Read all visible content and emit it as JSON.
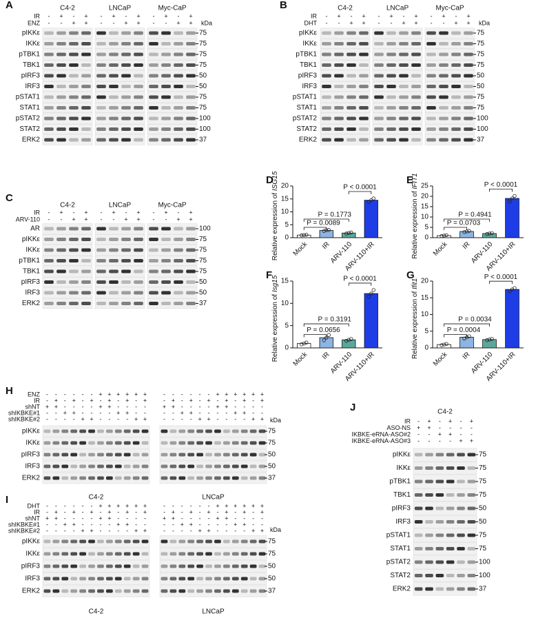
{
  "panels": [
    {
      "letter": "A",
      "groups": [
        "C4-2",
        "LNCaP",
        "Myc-CaP"
      ],
      "conditions": [
        {
          "name": "IR",
          "signs": [
            "-",
            "+",
            "-",
            "+"
          ]
        },
        {
          "name": "ENZ",
          "signs": [
            "-",
            "-",
            "+",
            "+"
          ]
        }
      ],
      "kda_label": "kDa",
      "rows": [
        {
          "name": "pIKKε",
          "marker": 75
        },
        {
          "name": "IKKε",
          "marker": 75
        },
        {
          "name": "pTBK1",
          "marker": 75
        },
        {
          "name": "TBK1",
          "marker": 75
        },
        {
          "name": "pIRF3",
          "marker": 50
        },
        {
          "name": "IRF3",
          "marker": 50
        },
        {
          "name": "pSTAT1",
          "marker": 75
        },
        {
          "name": "STAT1",
          "marker": 75
        },
        {
          "name": "pSTAT2",
          "marker": 100
        },
        {
          "name": "STAT2",
          "marker": 100
        },
        {
          "name": "ERK2",
          "marker": 37
        }
      ]
    },
    {
      "letter": "B",
      "groups": [
        "C4-2",
        "LNCaP",
        "Myc-CaP"
      ],
      "conditions": [
        {
          "name": "IR",
          "signs": [
            "-",
            "+",
            "-",
            "+"
          ]
        },
        {
          "name": "DHT",
          "signs": [
            "-",
            "-",
            "+",
            "+"
          ]
        }
      ],
      "kda_label": "kDa",
      "rows": [
        {
          "name": "pIKKε",
          "marker": 75
        },
        {
          "name": "IKKε",
          "marker": 75
        },
        {
          "name": "pTBK1",
          "marker": 75
        },
        {
          "name": "TBK1",
          "marker": 75
        },
        {
          "name": "pIRF3",
          "marker": 50
        },
        {
          "name": "IRF3",
          "marker": 50
        },
        {
          "name": "pSTAT1",
          "marker": 75
        },
        {
          "name": "STAT1",
          "marker": 75
        },
        {
          "name": "pSTAT2",
          "marker": 100
        },
        {
          "name": "STAT2",
          "marker": 100
        },
        {
          "name": "ERK2",
          "marker": 37
        }
      ]
    },
    {
      "letter": "C",
      "groups": [
        "C4-2",
        "LNCaP",
        "Myc-CaP"
      ],
      "conditions": [
        {
          "name": "IR",
          "signs": [
            "-",
            "+",
            "-",
            "+"
          ]
        },
        {
          "name": "ARV-110",
          "signs": [
            "-",
            "-",
            "+",
            "+"
          ]
        }
      ],
      "rows": [
        {
          "name": "AR",
          "marker": 100
        },
        {
          "name": "pIKKε",
          "marker": 75
        },
        {
          "name": "IKKε",
          "marker": 75
        },
        {
          "name": "pTBK1",
          "marker": 75
        },
        {
          "name": "TBK1",
          "marker": 75
        },
        {
          "name": "pIRF3",
          "marker": 50
        },
        {
          "name": "IRF3",
          "marker": 50
        },
        {
          "name": "ERK2",
          "marker": 37
        }
      ]
    },
    {
      "letter": "H",
      "groups": [
        "C4-2",
        "LNCaP"
      ],
      "kda_label": "kDa",
      "conditions": [
        {
          "name": "ENZ",
          "signs": [
            "-",
            "-",
            "-",
            "-",
            "-",
            "-",
            "+",
            "+",
            "+",
            "+",
            "+",
            "+"
          ]
        },
        {
          "name": "IR",
          "signs": [
            "-",
            "+",
            "-",
            "+",
            "-",
            "+",
            "-",
            "+",
            "-",
            "+",
            "-",
            "+"
          ]
        },
        {
          "name": "shNT",
          "signs": [
            "+",
            "+",
            "-",
            "-",
            "-",
            "-",
            "+",
            "+",
            "-",
            "-",
            "-",
            "-"
          ]
        },
        {
          "name": "shIKBKE#1",
          "signs": [
            "-",
            "-",
            "+",
            "+",
            "-",
            "-",
            "-",
            "-",
            "+",
            "+",
            "-",
            "-"
          ]
        },
        {
          "name": "shIKBKE#2",
          "signs": [
            "-",
            "-",
            "-",
            "-",
            "+",
            "+",
            "-",
            "-",
            "-",
            "-",
            "+",
            "+"
          ]
        }
      ],
      "rows": [
        {
          "name": "pIKKε",
          "marker": 75
        },
        {
          "name": "IKKε",
          "marker": 75
        },
        {
          "name": "pIRF3",
          "marker": 50
        },
        {
          "name": "IRF3",
          "marker": 50
        },
        {
          "name": "ERK2",
          "marker": 37
        }
      ]
    },
    {
      "letter": "I",
      "groups": [
        "C4-2",
        "LNCaP"
      ],
      "kda_label": "kDa",
      "conditions": [
        {
          "name": "DHT",
          "signs": [
            "-",
            "-",
            "-",
            "-",
            "-",
            "-",
            "+",
            "+",
            "+",
            "+",
            "+",
            "+"
          ]
        },
        {
          "name": "IR",
          "signs": [
            "-",
            "+",
            "-",
            "+",
            "-",
            "+",
            "-",
            "+",
            "-",
            "+",
            "-",
            "+"
          ]
        },
        {
          "name": "shNT",
          "signs": [
            "+",
            "+",
            "-",
            "-",
            "-",
            "-",
            "+",
            "+",
            "-",
            "-",
            "-",
            "-"
          ]
        },
        {
          "name": "shIKBKE#1",
          "signs": [
            "-",
            "-",
            "+",
            "+",
            "-",
            "-",
            "-",
            "-",
            "+",
            "+",
            "-",
            "-"
          ]
        },
        {
          "name": "shIKBKE#2",
          "signs": [
            "-",
            "-",
            "-",
            "-",
            "+",
            "+",
            "-",
            "-",
            "-",
            "-",
            "+",
            "+"
          ]
        }
      ],
      "rows": [
        {
          "name": "pIKKε",
          "marker": 75
        },
        {
          "name": "IKKε",
          "marker": 75
        },
        {
          "name": "pIRF3",
          "marker": 50
        },
        {
          "name": "IRF3",
          "marker": 50
        },
        {
          "name": "ERK2",
          "marker": 37
        }
      ]
    },
    {
      "letter": "J",
      "groups": [
        "C4-2"
      ],
      "conditions": [
        {
          "name": "IR",
          "signs": [
            "-",
            "+",
            "-",
            "+",
            "-",
            "+"
          ]
        },
        {
          "name": "ASO-NS",
          "signs": [
            "+",
            "+",
            "-",
            "-",
            "-",
            "-"
          ]
        },
        {
          "name": "IKBKE-eRNA-ASO#2",
          "signs": [
            "-",
            "-",
            "+",
            "+",
            "-",
            "-"
          ]
        },
        {
          "name": "IKBKE-eRNA-ASO#3",
          "signs": [
            "-",
            "-",
            "-",
            "-",
            "+",
            "+"
          ]
        }
      ],
      "rows": [
        {
          "name": "pIKKε",
          "marker": 75
        },
        {
          "name": "IKKε",
          "marker": 75
        },
        {
          "name": "pTBK1",
          "marker": 75
        },
        {
          "name": "TBK1",
          "marker": 75
        },
        {
          "name": "pIRF3",
          "marker": 50
        },
        {
          "name": "IRF3",
          "marker": 50
        },
        {
          "name": "pSTAT1",
          "marker": 75
        },
        {
          "name": "STAT1",
          "marker": 75
        },
        {
          "name": "pSTAT2",
          "marker": 100
        },
        {
          "name": "STAT2",
          "marker": 100
        },
        {
          "name": "ERK2",
          "marker": 37
        }
      ]
    }
  ],
  "charts": [
    {
      "letter": "D",
      "type": "bar",
      "ylabel": "Relative expression of ",
      "gene": "ISG15",
      "categories": [
        "Mock",
        "IR",
        "ARV-110",
        "ARV-110+IR"
      ],
      "colors": [
        "#ffffff",
        "#8db4e2",
        "#5aa89c",
        "#1f3de6"
      ],
      "values": [
        1.0,
        2.8,
        1.8,
        14.5
      ],
      "points": [
        [
          0.9,
          1.0,
          1.1
        ],
        [
          2.6,
          2.9,
          3.0
        ],
        [
          1.6,
          1.8,
          2.0
        ],
        [
          13.8,
          14.5,
          15.2
        ]
      ],
      "ylim": [
        0,
        20
      ],
      "yticks": [
        0,
        5,
        10,
        15,
        20
      ],
      "comparisons": [
        "P = 0.0089",
        "P = 0.1773",
        "P < 0.0001"
      ]
    },
    {
      "letter": "E",
      "type": "bar",
      "ylabel": "Relative expression of ",
      "gene": "IFIT1",
      "categories": [
        "Mock",
        "IR",
        "ARV-110",
        "ARV-110+IR"
      ],
      "colors": [
        "#ffffff",
        "#8db4e2",
        "#5aa89c",
        "#1f3de6"
      ],
      "values": [
        1.0,
        3.0,
        2.0,
        19.0
      ],
      "points": [
        [
          0.8,
          1.0,
          1.2
        ],
        [
          2.7,
          3.0,
          3.3
        ],
        [
          1.8,
          2.0,
          2.2
        ],
        [
          17.5,
          19.0,
          20.2
        ]
      ],
      "ylim": [
        0,
        25
      ],
      "yticks": [
        0,
        5,
        10,
        15,
        20,
        25
      ],
      "comparisons": [
        "P = 0.0703",
        "P = 0.4941",
        "P < 0.0001"
      ]
    },
    {
      "letter": "F",
      "type": "bar",
      "ylabel": "Relative expression of ",
      "gene": "Isg15",
      "categories": [
        "Mock",
        "IR",
        "ARV-110",
        "ARV-110+IR"
      ],
      "colors": [
        "#ffffff",
        "#8db4e2",
        "#5aa89c",
        "#1f3de6"
      ],
      "values": [
        1.0,
        2.3,
        1.8,
        12.2
      ],
      "points": [
        [
          0.8,
          1.0,
          1.2
        ],
        [
          1.7,
          2.3,
          2.9
        ],
        [
          1.6,
          1.8,
          2.0
        ],
        [
          11.5,
          12.2,
          13.0
        ]
      ],
      "ylim": [
        0,
        15
      ],
      "yticks": [
        0,
        5,
        10,
        15
      ],
      "comparisons": [
        "P = 0.0656",
        "P = 0.3191",
        "P < 0.0001"
      ]
    },
    {
      "letter": "G",
      "type": "bar",
      "ylabel": "Relative expression of ",
      "gene": "Ifit1",
      "categories": [
        "Mock",
        "IR",
        "ARV-110",
        "ARV-110+IR"
      ],
      "colors": [
        "#ffffff",
        "#8db4e2",
        "#5aa89c",
        "#1f3de6"
      ],
      "values": [
        1.0,
        3.2,
        2.5,
        17.5
      ],
      "points": [
        [
          0.8,
          1.0,
          1.2
        ],
        [
          2.8,
          3.2,
          3.5
        ],
        [
          2.3,
          2.5,
          2.7
        ],
        [
          17.0,
          17.5,
          17.9
        ]
      ],
      "ylim": [
        0,
        20
      ],
      "yticks": [
        0,
        5,
        10,
        15,
        20
      ],
      "comparisons": [
        "P = 0.0004",
        "P = 0.0034",
        "P < 0.0001"
      ]
    }
  ]
}
